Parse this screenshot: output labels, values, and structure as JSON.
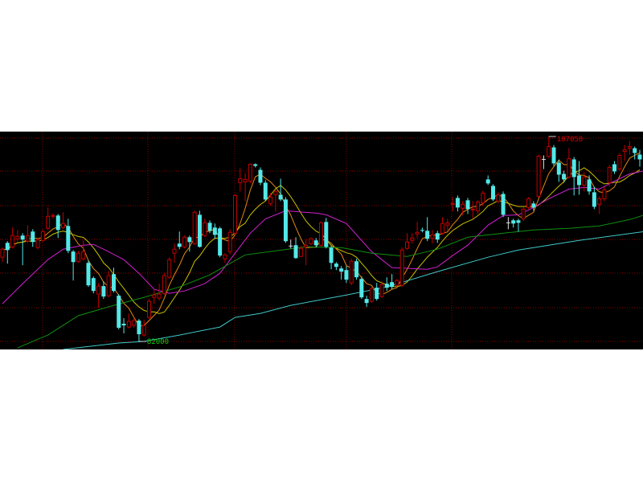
{
  "chart_data": {
    "type": "candlestick",
    "candle_format": [
      "open",
      "high",
      "low",
      "close"
    ],
    "colors": {
      "background": "#000000",
      "up": "#c00000",
      "down": "#54e8e8",
      "doji": "#e0e0e0",
      "grid": "#8b0000",
      "max_label": "#e00000",
      "min_label": "#10d010"
    },
    "ylim": [
      81000,
      107600
    ],
    "grid": true,
    "annotations": {
      "max_label": "107050",
      "min_label": "82000",
      "max_value": 107050,
      "min_value": 82000
    },
    "candles": [
      [
        92290,
        93470,
        91700,
        93270
      ],
      [
        94050,
        94250,
        91510,
        93170
      ],
      [
        93560,
        95920,
        93370,
        94940
      ],
      [
        94540,
        95620,
        94250,
        94840
      ],
      [
        94940,
        95230,
        91310,
        94450
      ],
      [
        94250,
        96210,
        94050,
        94940
      ],
      [
        95430,
        95720,
        93560,
        94150
      ],
      [
        93470,
        94640,
        93270,
        94450
      ],
      [
        94350,
        95720,
        94150,
        95430
      ],
      [
        95820,
        98370,
        95620,
        97290
      ],
      [
        97290,
        97680,
        96990,
        97390
      ],
      [
        97390,
        97580,
        94640,
        95620
      ],
      [
        95920,
        97780,
        95720,
        96410
      ],
      [
        96110,
        96990,
        92780,
        93070
      ],
      [
        92980,
        93170,
        89450,
        91700
      ],
      [
        91800,
        93070,
        91600,
        92780
      ],
      [
        92090,
        94350,
        91900,
        92980
      ],
      [
        91600,
        91900,
        88660,
        88860
      ],
      [
        89740,
        89940,
        87880,
        88170
      ],
      [
        87780,
        89150,
        86120,
        88760
      ],
      [
        88760,
        89350,
        87190,
        87490
      ],
      [
        87590,
        90620,
        87390,
        90040
      ],
      [
        90230,
        91020,
        87980,
        88170
      ],
      [
        87590,
        87780,
        83470,
        83670
      ],
      [
        84160,
        84840,
        82980,
        83960
      ],
      [
        83760,
        85430,
        83570,
        84450
      ],
      [
        83960,
        84940,
        83670,
        84550
      ],
      [
        84550,
        84740,
        82000,
        82880
      ],
      [
        82780,
        84650,
        82590,
        83960
      ],
      [
        84940,
        87190,
        84740,
        86900
      ],
      [
        87390,
        88270,
        86610,
        87680
      ],
      [
        87290,
        89060,
        87000,
        87780
      ],
      [
        87880,
        90330,
        87680,
        90040
      ],
      [
        89840,
        92290,
        89640,
        92000
      ],
      [
        92780,
        93960,
        91600,
        93270
      ],
      [
        93960,
        95430,
        93270,
        93560
      ],
      [
        93560,
        94940,
        93370,
        94740
      ],
      [
        94740,
        94940,
        92980,
        94150
      ],
      [
        93960,
        97970,
        93760,
        97780
      ],
      [
        97480,
        97970,
        93470,
        93560
      ],
      [
        94940,
        96990,
        94740,
        96500
      ],
      [
        96500,
        96800,
        95230,
        95520
      ],
      [
        95920,
        96410,
        94540,
        95030
      ],
      [
        95820,
        96010,
        92290,
        92490
      ],
      [
        92090,
        92780,
        91600,
        92580
      ],
      [
        92980,
        95720,
        92680,
        95330
      ],
      [
        95230,
        100030,
        95030,
        99840
      ],
      [
        101400,
        103170,
        100330,
        101890
      ],
      [
        101500,
        102580,
        99150,
        101800
      ],
      [
        101600,
        103760,
        101310,
        103660
      ],
      [
        103660,
        103760,
        103270,
        103460
      ],
      [
        102970,
        103270,
        101110,
        101400
      ],
      [
        101400,
        101700,
        99150,
        99350
      ],
      [
        98860,
        100130,
        98560,
        99640
      ],
      [
        99930,
        100520,
        97880,
        100330
      ],
      [
        99930,
        101890,
        99150,
        99350
      ],
      [
        99350,
        99640,
        94050,
        94250
      ],
      [
        93660,
        94450,
        93370,
        93660
      ],
      [
        93760,
        94740,
        92090,
        92190
      ],
      [
        92390,
        93660,
        92290,
        93370
      ],
      [
        93560,
        94450,
        91310,
        93760
      ],
      [
        93960,
        94740,
        93760,
        94540
      ],
      [
        94350,
        94640,
        93470,
        93760
      ],
      [
        93760,
        96700,
        93560,
        96500
      ],
      [
        96600,
        97090,
        93370,
        93560
      ],
      [
        93470,
        93660,
        90820,
        91600
      ],
      [
        91510,
        91700,
        90720,
        91110
      ],
      [
        90920,
        91210,
        89550,
        90530
      ],
      [
        90720,
        91210,
        89150,
        89550
      ],
      [
        89150,
        92090,
        88860,
        91800
      ],
      [
        91800,
        92090,
        89550,
        89840
      ],
      [
        89640,
        89940,
        87190,
        87390
      ],
      [
        87190,
        87590,
        86210,
        86700
      ],
      [
        86900,
        88660,
        86700,
        88470
      ],
      [
        88570,
        89150,
        87000,
        87190
      ],
      [
        87490,
        89350,
        87290,
        88960
      ],
      [
        89060,
        89840,
        88170,
        88570
      ],
      [
        89250,
        90230,
        88370,
        88660
      ],
      [
        88860,
        89640,
        88660,
        89450
      ],
      [
        88860,
        93470,
        88660,
        93170
      ],
      [
        93370,
        95230,
        93170,
        94150
      ],
      [
        94350,
        95230,
        93960,
        94640
      ],
      [
        95130,
        96600,
        94640,
        95330
      ],
      [
        95620,
        95920,
        95330,
        95520
      ],
      [
        95520,
        97190,
        94250,
        94540
      ],
      [
        94640,
        95620,
        93960,
        95030
      ],
      [
        95230,
        95520,
        94050,
        94450
      ],
      [
        95230,
        97190,
        95030,
        96410
      ],
      [
        96210,
        96990,
        95430,
        96500
      ],
      [
        98760,
        99640,
        97880,
        98860
      ],
      [
        99540,
        99840,
        97880,
        98370
      ],
      [
        98270,
        99150,
        97390,
        98760
      ],
      [
        99250,
        99540,
        97580,
        98170
      ],
      [
        98070,
        99150,
        96990,
        98170
      ],
      [
        97970,
        99250,
        97580,
        99050
      ],
      [
        98950,
        100420,
        98560,
        100130
      ],
      [
        101800,
        102290,
        101110,
        101310
      ],
      [
        101010,
        101210,
        99150,
        99350
      ],
      [
        99150,
        100230,
        98860,
        99930
      ],
      [
        100030,
        100330,
        97190,
        97480
      ],
      [
        96500,
        97190,
        95720,
        96500
      ],
      [
        96800,
        96990,
        95920,
        96410
      ],
      [
        96800,
        96990,
        95430,
        96500
      ],
      [
        96990,
        98370,
        96700,
        98170
      ],
      [
        98370,
        99640,
        98170,
        99440
      ],
      [
        98860,
        99150,
        97970,
        98370
      ],
      [
        99740,
        104830,
        99540,
        104640
      ],
      [
        104250,
        104740,
        103070,
        104250
      ],
      [
        104640,
        107050,
        104440,
        105810
      ],
      [
        105720,
        106010,
        103460,
        103760
      ],
      [
        103850,
        104250,
        101500,
        102380
      ],
      [
        102480,
        102870,
        101400,
        101800
      ],
      [
        102090,
        105620,
        101890,
        104340
      ],
      [
        104250,
        104540,
        99840,
        102090
      ],
      [
        102290,
        104050,
        99930,
        101110
      ],
      [
        101110,
        102680,
        100330,
        102090
      ],
      [
        101800,
        102290,
        99930,
        100330
      ],
      [
        100230,
        100910,
        98170,
        98460
      ],
      [
        98760,
        99740,
        97580,
        99440
      ],
      [
        99440,
        100910,
        99150,
        100520
      ],
      [
        101400,
        103560,
        100910,
        103270
      ],
      [
        103660,
        104050,
        102480,
        102780
      ],
      [
        103070,
        105030,
        102870,
        104740
      ],
      [
        105230,
        106010,
        104050,
        105420
      ],
      [
        105620,
        106500,
        104830,
        105810
      ],
      [
        105620,
        105810,
        104250,
        105030
      ],
      [
        104830,
        105420,
        103360,
        104250
      ]
    ],
    "moving_averages": [
      {
        "period": 5,
        "color": "#e08a10",
        "computed": true
      },
      {
        "period": 10,
        "color": "#c8c000",
        "computed": true
      },
      {
        "period": 20,
        "color": "#d020d0",
        "points": [
          [
            0,
            86610
          ],
          [
            4,
            89060
          ],
          [
            9,
            92000
          ],
          [
            12,
            93270
          ],
          [
            16,
            93760
          ],
          [
            18,
            93860
          ],
          [
            20,
            93270
          ],
          [
            24,
            92000
          ],
          [
            27,
            90330
          ],
          [
            30,
            88370
          ],
          [
            33,
            87880
          ],
          [
            36,
            88170
          ],
          [
            40,
            89060
          ],
          [
            43,
            90330
          ],
          [
            46,
            92780
          ],
          [
            49,
            95230
          ],
          [
            52,
            96990
          ],
          [
            56,
            97970
          ],
          [
            62,
            97680
          ],
          [
            64,
            97480
          ],
          [
            68,
            96410
          ],
          [
            73,
            92980
          ],
          [
            77,
            91020
          ],
          [
            84,
            90820
          ],
          [
            86,
            91110
          ],
          [
            89,
            92490
          ],
          [
            92,
            93760
          ],
          [
            96,
            96210
          ],
          [
            99,
            97390
          ],
          [
            102,
            97480
          ],
          [
            105,
            98370
          ],
          [
            108,
            99440
          ],
          [
            112,
            100620
          ],
          [
            115,
            100820
          ],
          [
            118,
            100620
          ],
          [
            121,
            101600
          ],
          [
            124,
            102480
          ],
          [
            127,
            102870
          ]
        ]
      },
      {
        "period": 60,
        "color": "#109010",
        "points": [
          [
            3,
            81220
          ],
          [
            9,
            82780
          ],
          [
            15,
            85140
          ],
          [
            22,
            86410
          ],
          [
            28,
            87390
          ],
          [
            35,
            88660
          ],
          [
            41,
            90130
          ],
          [
            48,
            92580
          ],
          [
            54,
            93070
          ],
          [
            60,
            93560
          ],
          [
            67,
            93470
          ],
          [
            73,
            92780
          ],
          [
            80,
            92390
          ],
          [
            86,
            93270
          ],
          [
            92,
            94740
          ],
          [
            99,
            95230
          ],
          [
            105,
            95620
          ],
          [
            112,
            95820
          ],
          [
            118,
            96110
          ],
          [
            124,
            96900
          ],
          [
            127,
            97480
          ]
        ]
      },
      {
        "period": 120,
        "color": "#40c8c8",
        "points": [
          [
            12,
            81020
          ],
          [
            23,
            81800
          ],
          [
            28,
            82000
          ],
          [
            35,
            82780
          ],
          [
            43,
            83760
          ],
          [
            46,
            84940
          ],
          [
            51,
            85430
          ],
          [
            57,
            86410
          ],
          [
            68,
            87680
          ],
          [
            76,
            88660
          ],
          [
            86,
            90530
          ],
          [
            96,
            92290
          ],
          [
            102,
            93170
          ],
          [
            114,
            94350
          ],
          [
            127,
            95430
          ]
        ]
      }
    ]
  }
}
